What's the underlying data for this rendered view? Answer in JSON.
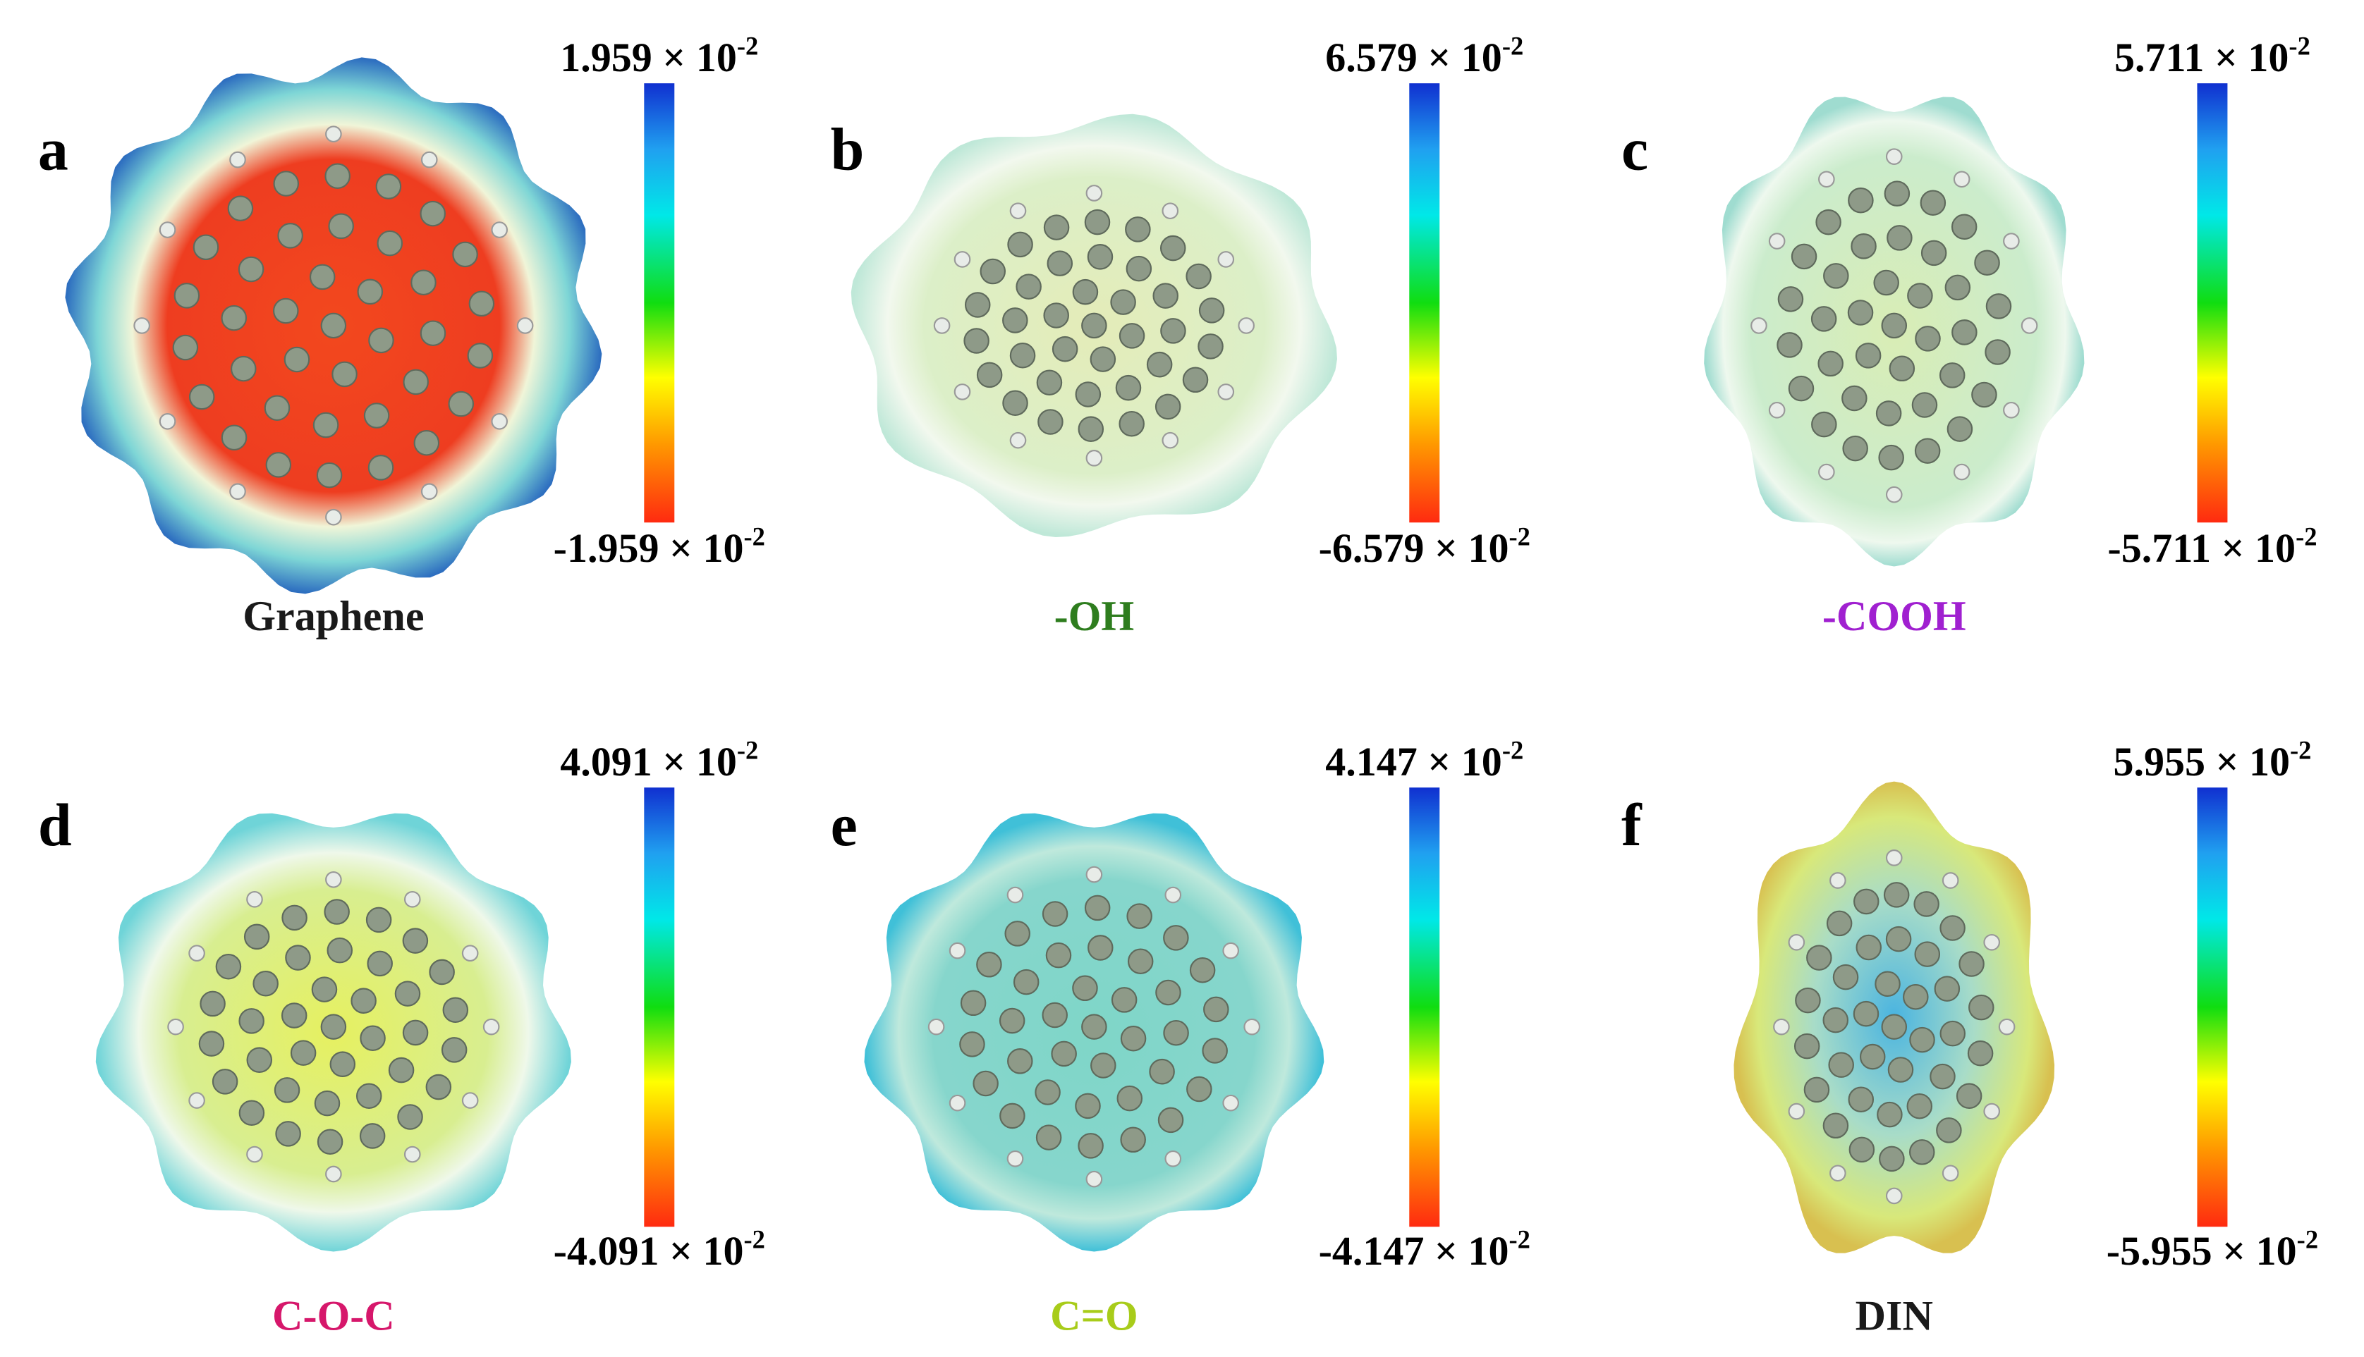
{
  "panels": [
    {
      "letter": "a",
      "name": "Graphene",
      "name_color": "#1a1a1a",
      "max_base": "1.959 × 10",
      "max_exp": "-2",
      "min_base": "-1.959 × 10",
      "min_exp": "-2"
    },
    {
      "letter": "b",
      "name": "-OH",
      "name_color": "#2e7d1e",
      "max_base": "6.579 × 10",
      "max_exp": "-2",
      "min_base": "-6.579 × 10",
      "min_exp": "-2"
    },
    {
      "letter": "c",
      "name": "-COOH",
      "name_color": "#a020d0",
      "max_base": "5.711 × 10",
      "max_exp": "-2",
      "min_base": "-5.711 × 10",
      "min_exp": "-2"
    },
    {
      "letter": "d",
      "name": "C-O-C",
      "name_color": "#d6176b",
      "max_base": "4.091 × 10",
      "max_exp": "-2",
      "min_base": "-4.091 × 10",
      "min_exp": "-2"
    },
    {
      "letter": "e",
      "name": "C=O",
      "name_color": "#a8cc1a",
      "max_base": "4.147 × 10",
      "max_exp": "-2",
      "min_base": "-4.147 × 10",
      "min_exp": "-2"
    },
    {
      "letter": "f",
      "name": "DIN",
      "name_color": "#1a1a1a",
      "max_base": "5.955 × 10",
      "max_exp": "-2",
      "min_base": "-5.955 × 10",
      "min_exp": "-2"
    }
  ]
}
